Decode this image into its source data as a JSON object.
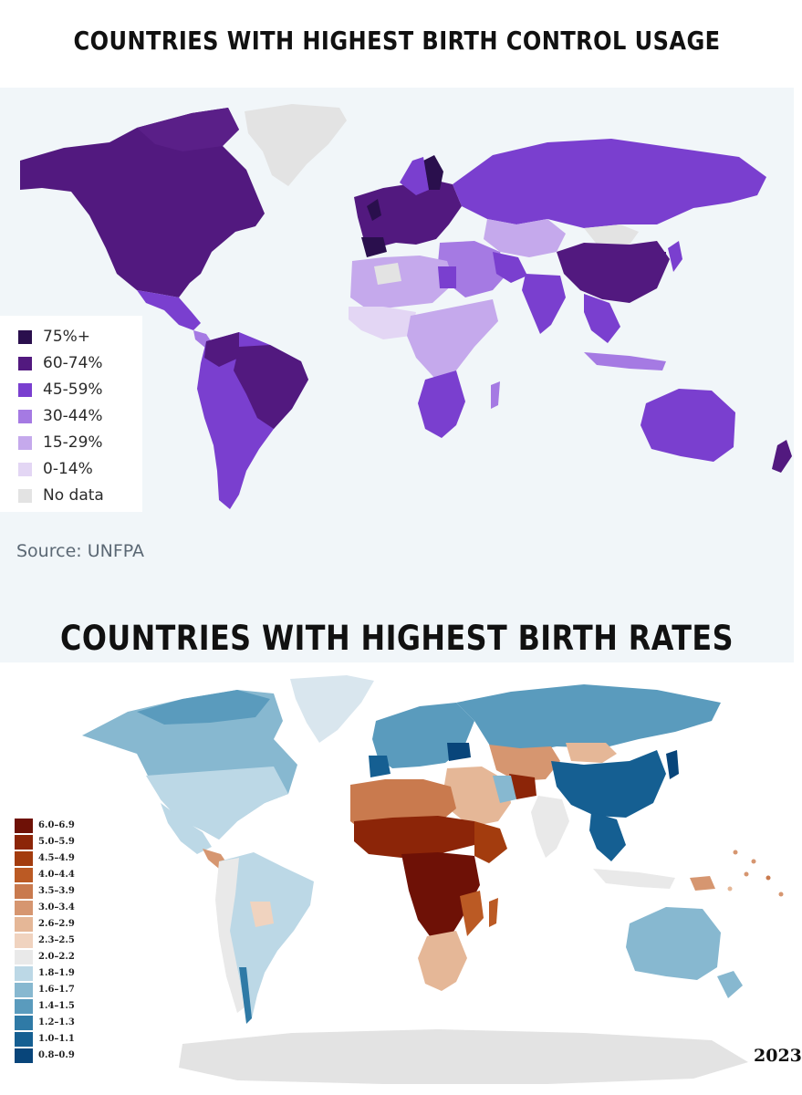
{
  "title_top": "COUNTRIES WITH HIGHEST BIRTH CONTROL USAGE",
  "title_bottom": "COUNTRIES WITH HIGHEST BIRTH RATES",
  "map1": {
    "legend": [
      {
        "label": "75%+",
        "color": "#2a0f4d"
      },
      {
        "label": "60-74%",
        "color": "#52197f"
      },
      {
        "label": "45-59%",
        "color": "#7a3fcf"
      },
      {
        "label": "30-44%",
        "color": "#a57ae3"
      },
      {
        "label": "15-29%",
        "color": "#c5a9ec"
      },
      {
        "label": "0-14%",
        "color": "#e3d6f4"
      },
      {
        "label": "No data",
        "color": "#e3e3e3"
      }
    ],
    "source": "Source: UNFPA",
    "background": "#f1f6f9"
  },
  "map2": {
    "legend": [
      {
        "label": "6.0–6.9",
        "color": "#6e1106"
      },
      {
        "label": "5.0–5.9",
        "color": "#8c2508"
      },
      {
        "label": "4.5–4.9",
        "color": "#a33c0e"
      },
      {
        "label": "4.0–4.4",
        "color": "#bb5a24"
      },
      {
        "label": "3.5–3.9",
        "color": "#c97a4e"
      },
      {
        "label": "3.0–3.4",
        "color": "#d69670"
      },
      {
        "label": "2.6–2.9",
        "color": "#e5b797"
      },
      {
        "label": "2.3–2.5",
        "color": "#f0d3bf"
      },
      {
        "label": "2.0–2.2",
        "color": "#e9e9e9"
      },
      {
        "label": "1.8–1.9",
        "color": "#bcd8e6"
      },
      {
        "label": "1.6–1.7",
        "color": "#87b8d0"
      },
      {
        "label": "1.4–1.5",
        "color": "#5a9bbd"
      },
      {
        "label": "1.2–1.3",
        "color": "#2f7aa6"
      },
      {
        "label": "1.0–1.1",
        "color": "#155f92"
      },
      {
        "label": "0.8–0.9",
        "color": "#08457a"
      }
    ],
    "year": "2023"
  }
}
